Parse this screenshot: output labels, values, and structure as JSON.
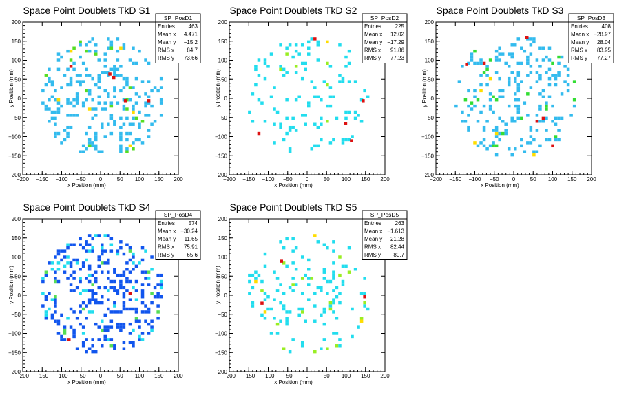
{
  "chart_data": [
    {
      "type": "heatmap",
      "title": "Space Point Doublets TkD S1",
      "xlabel": "x Position (mm)",
      "ylabel": "y Position (mm)",
      "xlim": [
        -200,
        200
      ],
      "ylim": [
        -200,
        200
      ],
      "xticks": [
        "-200",
        "-150",
        "-100",
        "-50",
        "0",
        "50",
        "100",
        "150",
        "200"
      ],
      "yticks": [
        "-200",
        "-150",
        "-100",
        "-50",
        "0",
        "50",
        "100",
        "150",
        "200"
      ],
      "stats": {
        "name": "SP_PosD1",
        "rows": [
          [
            "Entries",
            "463"
          ],
          [
            "Mean x",
            "4.471"
          ],
          [
            "Mean y",
            "-15.2"
          ],
          [
            "RMS x",
            "84.7"
          ],
          [
            "RMS y",
            "73.66"
          ]
        ]
      },
      "cells": {
        "entries": 463,
        "radius": 160,
        "colors": [
          "#33bbee",
          "#55dd22",
          "#ffdd00",
          "#dd1111"
        ],
        "weights": [
          0.86,
          0.1,
          0.025,
          0.015
        ],
        "hot": [
          [
            20,
            60
          ],
          [
            30,
            50
          ],
          [
            60,
            -10
          ],
          [
            120,
            -10
          ]
        ]
      }
    },
    {
      "type": "heatmap",
      "title": "Space Point Doublets TkD S2",
      "xlabel": "x Position (mm)",
      "ylabel": "y Position (mm)",
      "xlim": [
        -200,
        200
      ],
      "ylim": [
        -200,
        200
      ],
      "xticks": [
        "-200",
        "-150",
        "-100",
        "-50",
        "0",
        "50",
        "100",
        "150",
        "200"
      ],
      "yticks": [
        "-200",
        "-150",
        "-100",
        "-50",
        "0",
        "50",
        "100",
        "150",
        "200"
      ],
      "stats": {
        "name": "SP_PosD2",
        "rows": [
          [
            "Entries",
            "225"
          ],
          [
            "Mean x",
            "12.02"
          ],
          [
            "Mean y",
            "-17.29"
          ],
          [
            "RMS x",
            "91.86"
          ],
          [
            "RMS y",
            "77.23"
          ]
        ]
      },
      "cells": {
        "entries": 225,
        "radius": 160,
        "colors": [
          "#22ddee",
          "#99ee22",
          "#ffdd00",
          "#dd1111"
        ],
        "weights": [
          0.9,
          0.08,
          0.01,
          0.01
        ],
        "hot": [
          [
            140,
            -10
          ],
          [
            95,
            -70
          ],
          [
            110,
            -115
          ]
        ]
      }
    },
    {
      "type": "heatmap",
      "title": "Space Point Doublets TkD S3",
      "xlabel": "x Position (mm)",
      "ylabel": "y Position (mm)",
      "xlim": [
        -200,
        200
      ],
      "ylim": [
        -200,
        200
      ],
      "xticks": [
        "-200",
        "-150",
        "-100",
        "-50",
        "0",
        "50",
        "100",
        "150",
        "200"
      ],
      "yticks": [
        "-200",
        "-150",
        "-100",
        "-50",
        "0",
        "50",
        "100",
        "150",
        "200"
      ],
      "stats": {
        "name": "SP_PosD3",
        "rows": [
          [
            "Entries",
            "408"
          ],
          [
            "Mean x",
            "-28.97"
          ],
          [
            "Mean y",
            "28.04"
          ],
          [
            "RMS x",
            "83.95"
          ],
          [
            "RMS y",
            "77.27"
          ]
        ]
      },
      "cells": {
        "entries": 408,
        "radius": 160,
        "colors": [
          "#33bbee",
          "#33dd33",
          "#ffdd00",
          "#dd1111"
        ],
        "weights": [
          0.84,
          0.13,
          0.02,
          0.01
        ],
        "hot": [
          [
            -125,
            85
          ],
          [
            30,
            155
          ]
        ]
      }
    },
    {
      "type": "heatmap",
      "title": "Space Point Doublets TkD S4",
      "xlabel": "x Position (mm)",
      "ylabel": "y Position (mm)",
      "xlim": [
        -200,
        200
      ],
      "ylim": [
        -200,
        200
      ],
      "xticks": [
        "-200",
        "-150",
        "-100",
        "-50",
        "0",
        "50",
        "100",
        "150",
        "200"
      ],
      "yticks": [
        "-200",
        "-150",
        "-100",
        "-50",
        "0",
        "50",
        "100",
        "150",
        "200"
      ],
      "stats": {
        "name": "SP_PosD4",
        "rows": [
          [
            "Entries",
            "574"
          ],
          [
            "Mean x",
            "-30.24"
          ],
          [
            "Mean y",
            "11.65"
          ],
          [
            "RMS x",
            "75.91"
          ],
          [
            "RMS y",
            "65.6"
          ]
        ]
      },
      "cells": {
        "entries": 574,
        "radius": 160,
        "colors": [
          "#1155ee",
          "#22ddee",
          "#55dd55",
          "#dd1111"
        ],
        "weights": [
          0.8,
          0.15,
          0.04,
          0.01
        ],
        "hot": [
          [
            -85,
            -120
          ]
        ]
      }
    },
    {
      "type": "heatmap",
      "title": "Space Point Doublets TkD S5",
      "xlabel": "x Position (mm)",
      "ylabel": "y Position (mm)",
      "xlim": [
        -200,
        200
      ],
      "ylim": [
        -200,
        200
      ],
      "xticks": [
        "-200",
        "-150",
        "-100",
        "-50",
        "0",
        "50",
        "100",
        "150",
        "200"
      ],
      "yticks": [
        "-200",
        "-150",
        "-100",
        "-50",
        "0",
        "50",
        "100",
        "150",
        "200"
      ],
      "stats": {
        "name": "SP_PosD5",
        "rows": [
          [
            "Entries",
            "263"
          ],
          [
            "Mean x",
            "-1.613"
          ],
          [
            "Mean y",
            "21.28"
          ],
          [
            "RMS x",
            "82.44"
          ],
          [
            "RMS y",
            "80.7"
          ]
        ]
      },
      "cells": {
        "entries": 263,
        "radius": 160,
        "colors": [
          "#22ddee",
          "#99ee22",
          "#ffdd00",
          "#dd1111"
        ],
        "weights": [
          0.88,
          0.09,
          0.02,
          0.01
        ],
        "hot": [
          [
            -70,
            85
          ],
          [
            -120,
            -25
          ]
        ]
      }
    }
  ]
}
